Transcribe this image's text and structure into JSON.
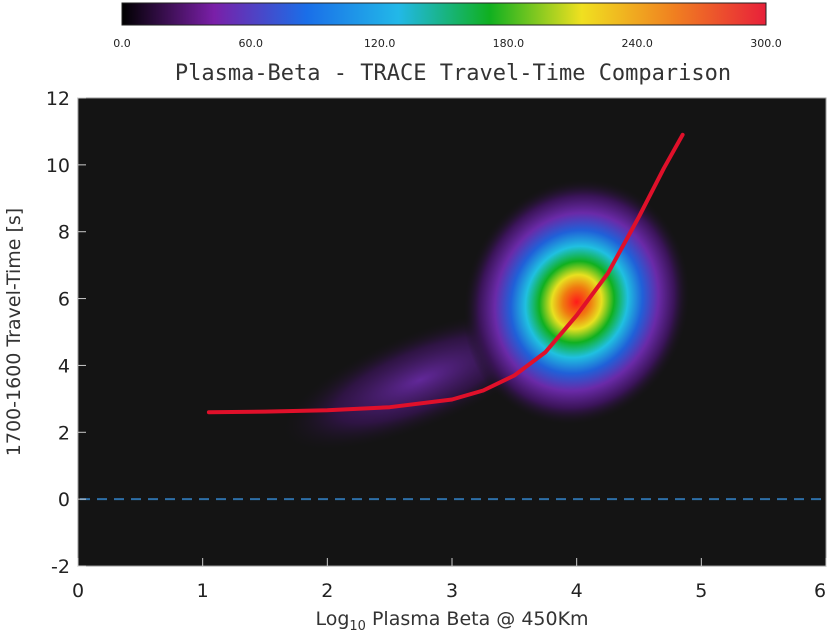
{
  "chart_data": {
    "type": "heatmap",
    "title": "Plasma-Beta - TRACE Travel-Time Comparison",
    "xlabel": "Log",
    "xlabel_sub": "10",
    "xlabel_rest": " Plasma Beta @ 450Km",
    "ylabel": "1700-1600 Travel-Time [s]",
    "xlim": [
      0,
      6
    ],
    "ylim": [
      -2,
      12
    ],
    "x_ticks": [
      "0",
      "1",
      "2",
      "3",
      "4",
      "5",
      "6"
    ],
    "y_ticks": [
      "-2",
      "0",
      "2",
      "4",
      "6",
      "8",
      "10",
      "12"
    ],
    "colorbar": {
      "range": [
        0,
        300
      ],
      "tick_labels": [
        "0.0",
        "60.0",
        "120.0",
        "180.0",
        "240.0",
        "300.0"
      ],
      "colors": [
        "#000000",
        "#7a1fa8",
        "#1a6ee8",
        "#22b8e8",
        "#10b020",
        "#f0e020",
        "#f08020",
        "#e8203a"
      ]
    },
    "background_color": "#141414",
    "density_peak": {
      "x": 4.0,
      "y": 5.9,
      "value": 300
    },
    "fit_curve": {
      "color": "#e0102a",
      "x": [
        1.05,
        1.5,
        2.0,
        2.5,
        3.0,
        3.25,
        3.5,
        3.75,
        4.0,
        4.25,
        4.5,
        4.7,
        4.85
      ],
      "y": [
        2.6,
        2.62,
        2.66,
        2.75,
        2.98,
        3.25,
        3.7,
        4.4,
        5.5,
        6.75,
        8.45,
        9.9,
        10.9
      ]
    },
    "zero_line": {
      "y": 0,
      "style": "dashed",
      "color": "#2d6fa8"
    }
  }
}
